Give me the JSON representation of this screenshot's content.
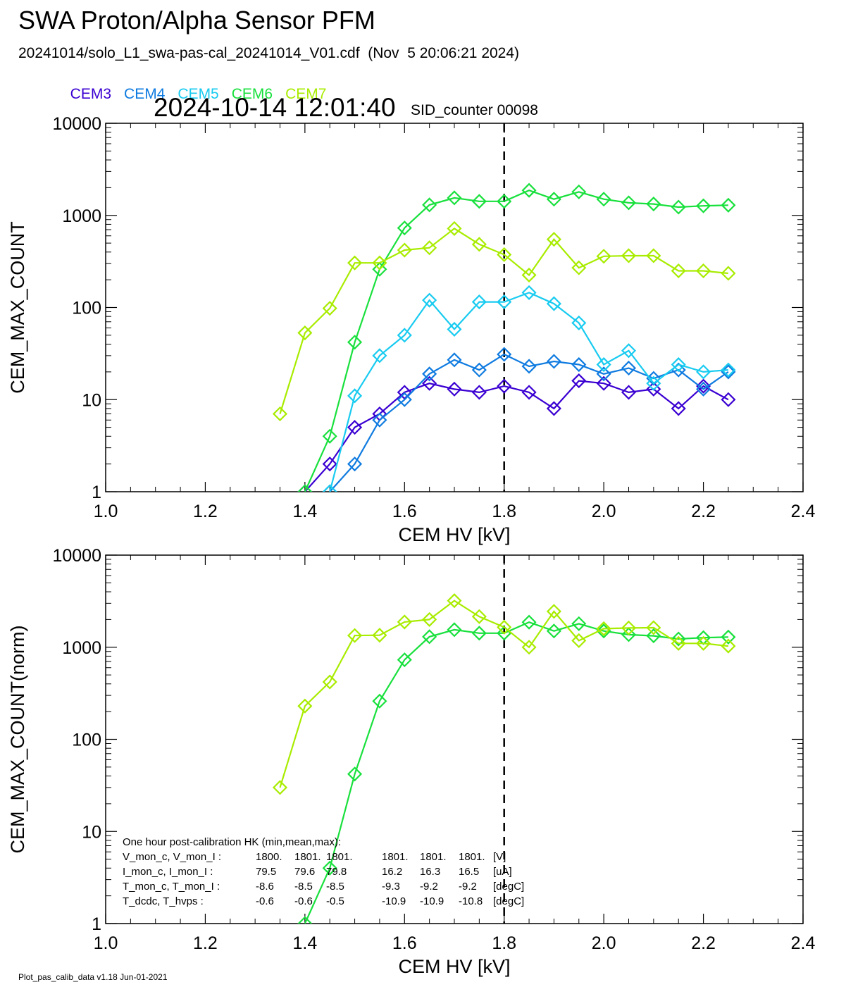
{
  "header": {
    "title": "SWA Proton/Alpha Sensor PFM",
    "file_line": "20241014/solo_L1_swa-pas-cal_20241014_V01.cdf  (Nov  5 20:06:21 2024)",
    "timestamp": "2024-10-14 12:01:40",
    "sid": "SID_counter 00098"
  },
  "legend": [
    {
      "name": "CEM3",
      "color": "#3a00d2"
    },
    {
      "name": "CEM4",
      "color": "#0f7be0"
    },
    {
      "name": "CEM5",
      "color": "#18cbf0"
    },
    {
      "name": "CEM6",
      "color": "#18e03c"
    },
    {
      "name": "CEM7",
      "color": "#a8ec00"
    }
  ],
  "footer": "Plot_pas_calib_data v1.18 Jun-01-2021",
  "chart_data": [
    {
      "type": "line",
      "xlabel": "CEM HV [kV]",
      "ylabel": "CEM_MAX_COUNT",
      "xlim": [
        1.0,
        2.4
      ],
      "ylim": [
        1,
        10000
      ],
      "yscale": "log",
      "xticks": [
        "1.0",
        "1.2",
        "1.4",
        "1.6",
        "1.8",
        "2.0",
        "2.2",
        "2.4"
      ],
      "yticks": [
        "1",
        "10",
        "100",
        "1000",
        "10000"
      ],
      "reference_line_x": 1.8,
      "series": [
        {
          "name": "CEM3",
          "color": "#3a00d2",
          "x": [
            1.4,
            1.45,
            1.5,
            1.55,
            1.6,
            1.65,
            1.7,
            1.75,
            1.8,
            1.85,
            1.9,
            1.95,
            2.0,
            2.05,
            2.1,
            2.15,
            2.2,
            2.25
          ],
          "y": [
            1,
            2,
            5,
            7,
            12,
            15,
            13,
            12,
            14,
            12,
            8,
            16,
            15,
            12,
            13,
            8,
            14,
            10
          ]
        },
        {
          "name": "CEM4",
          "color": "#0f7be0",
          "x": [
            1.45,
            1.5,
            1.55,
            1.6,
            1.65,
            1.7,
            1.75,
            1.8,
            1.85,
            1.9,
            1.95,
            2.0,
            2.05,
            2.1,
            2.15,
            2.2,
            2.25
          ],
          "y": [
            1,
            2,
            6,
            10,
            19,
            27,
            21,
            31,
            23,
            26,
            24,
            19,
            22,
            17,
            21,
            13,
            20
          ]
        },
        {
          "name": "CEM5",
          "color": "#18cbf0",
          "x": [
            1.45,
            1.5,
            1.55,
            1.6,
            1.65,
            1.7,
            1.75,
            1.8,
            1.85,
            1.9,
            1.95,
            2.0,
            2.05,
            2.1,
            2.15,
            2.2,
            2.25
          ],
          "y": [
            1,
            11,
            30,
            50,
            120,
            58,
            115,
            115,
            145,
            110,
            68,
            24,
            34,
            15,
            24,
            20,
            21
          ]
        },
        {
          "name": "CEM6",
          "color": "#18e03c",
          "x": [
            1.4,
            1.45,
            1.5,
            1.55,
            1.6,
            1.65,
            1.7,
            1.75,
            1.8,
            1.85,
            1.9,
            1.95,
            2.0,
            2.05,
            2.1,
            2.15,
            2.2,
            2.25
          ],
          "y": [
            1,
            4,
            42,
            260,
            730,
            1300,
            1550,
            1420,
            1420,
            1870,
            1500,
            1800,
            1500,
            1370,
            1330,
            1230,
            1270,
            1290
          ]
        },
        {
          "name": "CEM7",
          "color": "#a8ec00",
          "x": [
            1.35,
            1.4,
            1.45,
            1.5,
            1.55,
            1.6,
            1.65,
            1.7,
            1.75,
            1.8,
            1.85,
            1.9,
            1.95,
            2.0,
            2.05,
            2.1,
            2.15,
            2.2,
            2.25
          ],
          "y": [
            7,
            53,
            98,
            305,
            305,
            420,
            445,
            720,
            485,
            375,
            225,
            550,
            270,
            360,
            365,
            365,
            250,
            250,
            235
          ]
        }
      ]
    },
    {
      "type": "line",
      "xlabel": "CEM HV [kV]",
      "ylabel": "CEM_MAX_COUNT(norm)",
      "xlim": [
        1.0,
        2.4
      ],
      "ylim": [
        1,
        10000
      ],
      "yscale": "log",
      "xticks": [
        "1.0",
        "1.2",
        "1.4",
        "1.6",
        "1.8",
        "2.0",
        "2.2",
        "2.4"
      ],
      "yticks": [
        "1",
        "10",
        "100",
        "1000",
        "10000"
      ],
      "reference_line_x": 1.8,
      "series": [
        {
          "name": "CEM6",
          "color": "#18e03c",
          "x": [
            1.4,
            1.45,
            1.5,
            1.55,
            1.6,
            1.65,
            1.7,
            1.75,
            1.8,
            1.85,
            1.9,
            1.95,
            2.0,
            2.05,
            2.1,
            2.15,
            2.2,
            2.25
          ],
          "y": [
            1,
            4,
            42,
            260,
            730,
            1300,
            1550,
            1420,
            1420,
            1870,
            1500,
            1800,
            1500,
            1370,
            1330,
            1230,
            1270,
            1290
          ]
        },
        {
          "name": "CEM7",
          "color": "#a8ec00",
          "x": [
            1.35,
            1.4,
            1.45,
            1.5,
            1.55,
            1.6,
            1.65,
            1.7,
            1.75,
            1.8,
            1.85,
            1.9,
            1.95,
            2.0,
            2.05,
            2.1,
            2.15,
            2.2,
            2.25
          ],
          "y": [
            30,
            230,
            420,
            1340,
            1350,
            1880,
            2000,
            3200,
            2150,
            1650,
            1000,
            2450,
            1180,
            1590,
            1620,
            1630,
            1100,
            1100,
            1030
          ]
        }
      ],
      "annotation": {
        "title": "One hour post-calibration HK (min,mean,max):",
        "rows": [
          {
            "label": "V_mon_c, V_mon_I :",
            "c": [
              "1800.",
              "1801.",
              "1801."
            ],
            "i": [
              "1801.",
              "1801.",
              "1801."
            ],
            "unit": "[V]"
          },
          {
            "label": "I_mon_c,  I_mon_I :",
            "c": [
              "79.5",
              "79.6",
              "79.8"
            ],
            "i": [
              "16.2",
              "16.3",
              "16.5"
            ],
            "unit": "[uA]"
          },
          {
            "label": "T_mon_c, T_mon_I :",
            "c": [
              "-8.6",
              "-8.5",
              "-8.5"
            ],
            "i": [
              "-9.3",
              "-9.2",
              "-9.2"
            ],
            "unit": "[degC]"
          },
          {
            "label": "T_dcdc,    T_hvps :",
            "c": [
              "-0.6",
              "-0.6",
              "-0.5"
            ],
            "i": [
              "-10.9",
              "-10.9",
              "-10.8"
            ],
            "unit": "[degC]"
          }
        ]
      }
    }
  ]
}
